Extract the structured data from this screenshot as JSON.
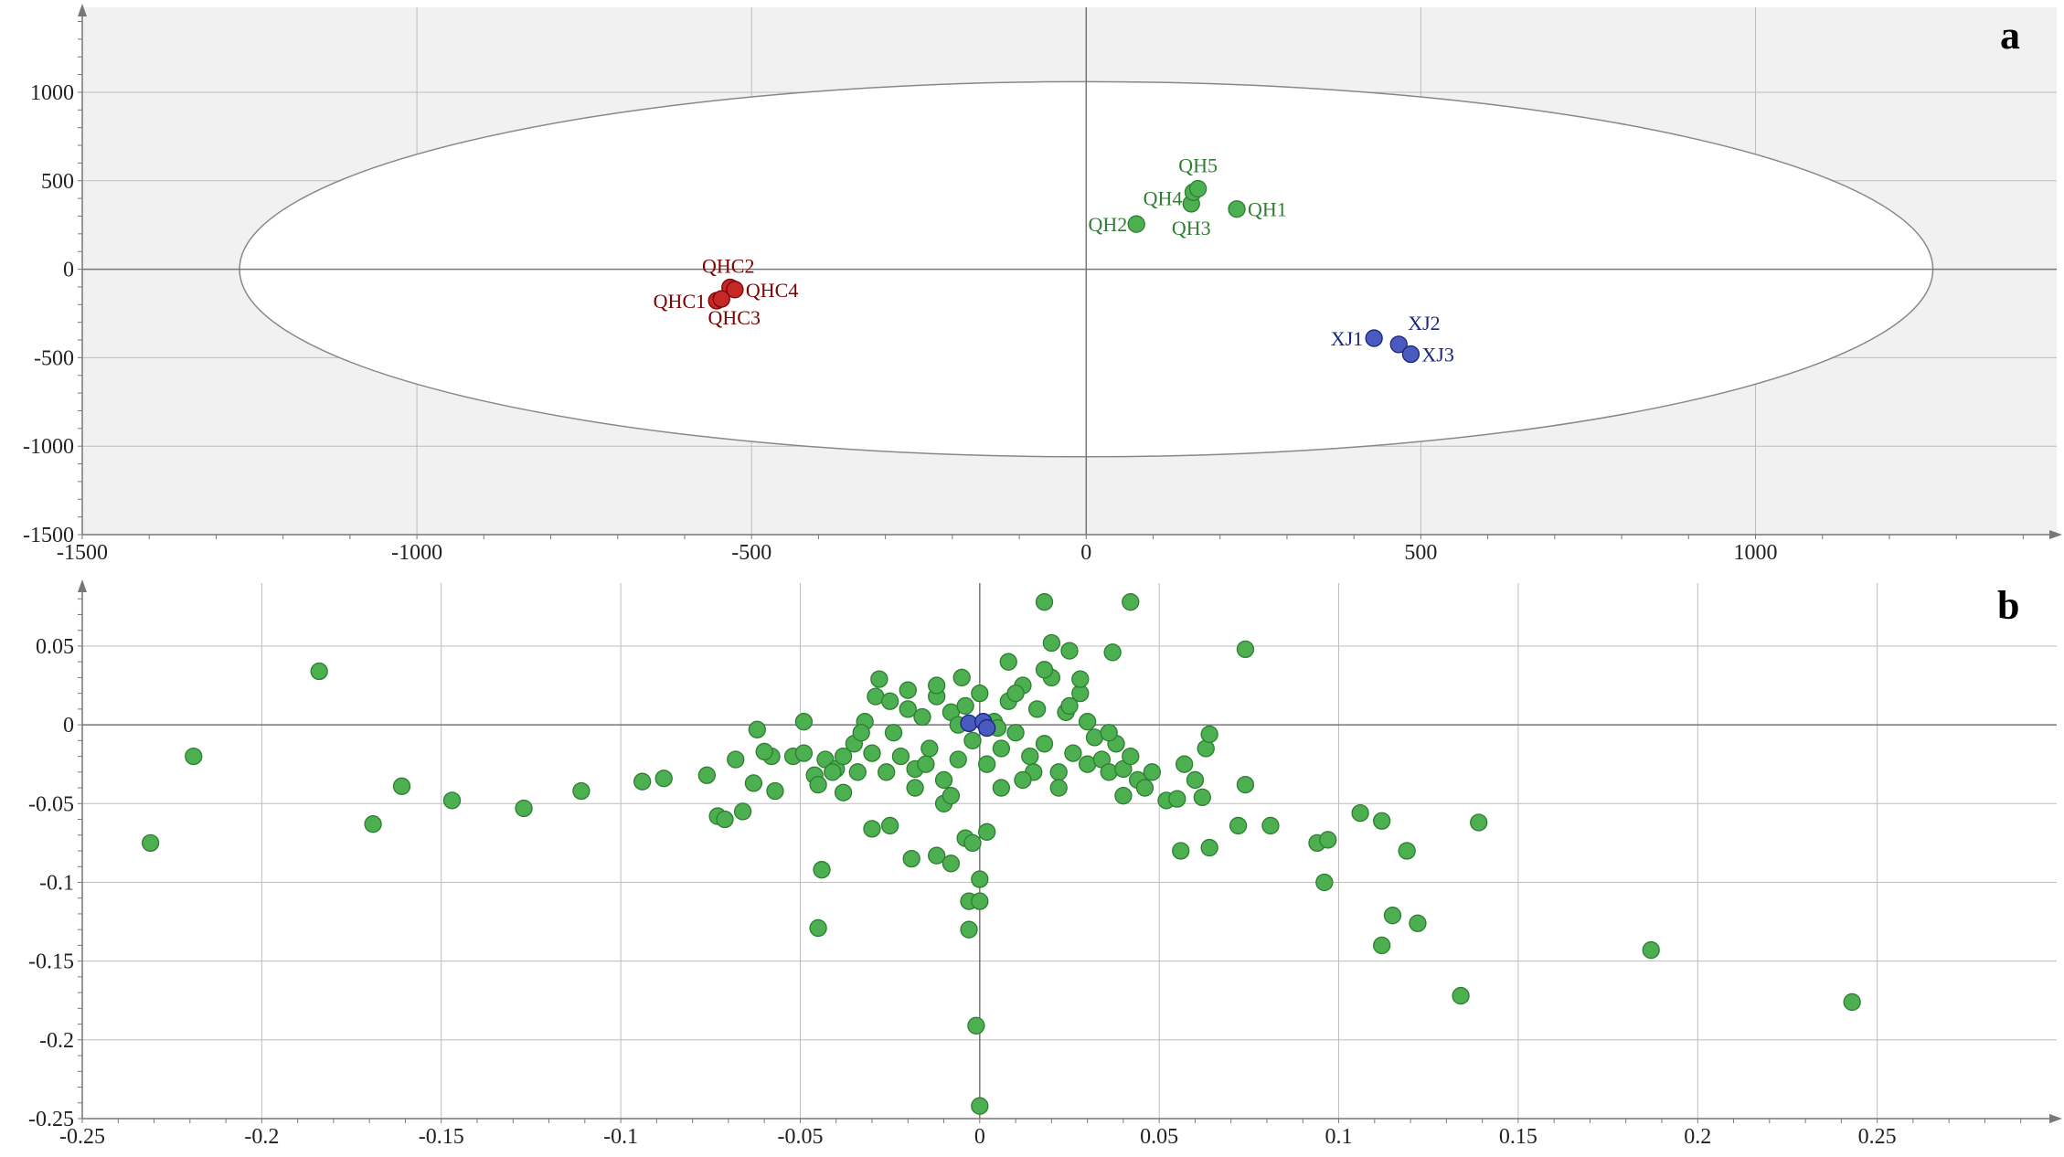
{
  "colors": {
    "green": "#4caf50",
    "green_stroke": "#2e7d32",
    "red": "#c62828",
    "red_stroke": "#7f0000",
    "blue": "#4a5bbf",
    "blue_stroke": "#1a237e",
    "plot_bg": "#f1f1f1",
    "ellipse_fill": "#ffffff",
    "grid": "#bdbdbd"
  },
  "chart_data": [
    {
      "type": "scatter",
      "panel_label": "a",
      "title": "",
      "xlabel": "",
      "ylabel": "",
      "xlim": [
        -1500,
        1450
      ],
      "ylim": [
        -1500,
        1480
      ],
      "x_ticks": [
        -1500,
        -1000,
        -500,
        0,
        500,
        1000
      ],
      "x_tick_labels": [
        "-1500",
        "-1000",
        "-500",
        "0",
        "500",
        "1000"
      ],
      "y_ticks": [
        -1500,
        -1000,
        -500,
        0,
        500,
        1000
      ],
      "y_tick_labels": [
        "-1500",
        "-1000",
        "-500",
        "0",
        "500",
        "1000"
      ],
      "grid": true,
      "ellipse": {
        "cx": 0,
        "cy": 0,
        "rx": 1265,
        "ry": 1060
      },
      "series": [
        {
          "color": "red",
          "points": [
            {
              "label": "QHC1",
              "x": -552,
              "y": -178
            },
            {
              "label": "QHC2",
              "x": -532,
              "y": -103
            },
            {
              "label": "QHC3",
              "x": -545,
              "y": -168
            },
            {
              "label": "QHC4",
              "x": -525,
              "y": -115
            }
          ]
        },
        {
          "color": "green",
          "points": [
            {
              "label": "QH1",
              "x": 225,
              "y": 340
            },
            {
              "label": "QH2",
              "x": 75,
              "y": 255
            },
            {
              "label": "QH3",
              "x": 157,
              "y": 370
            },
            {
              "label": "QH4",
              "x": 160,
              "y": 435
            },
            {
              "label": "QH5",
              "x": 167,
              "y": 455
            }
          ]
        },
        {
          "color": "blue",
          "points": [
            {
              "label": "XJ1",
              "x": 430,
              "y": -390
            },
            {
              "label": "XJ2",
              "x": 467,
              "y": -425
            },
            {
              "label": "XJ3",
              "x": 485,
              "y": -480
            }
          ]
        }
      ]
    },
    {
      "type": "scatter",
      "panel_label": "b",
      "title": "",
      "xlabel": "",
      "ylabel": "",
      "xlim": [
        -0.25,
        0.3
      ],
      "ylim": [
        -0.25,
        0.09
      ],
      "x_ticks": [
        -0.25,
        -0.2,
        -0.15,
        -0.1,
        -0.05,
        0,
        0.05,
        0.1,
        0.15,
        0.2,
        0.25
      ],
      "x_tick_labels": [
        "-0.25",
        "-0.2",
        "-0.15",
        "-0.1",
        "-0.05",
        "0",
        "0.05",
        "0.1",
        "0.15",
        "0.2",
        "0.25"
      ],
      "y_ticks": [
        -0.25,
        -0.2,
        -0.15,
        -0.1,
        -0.05,
        0,
        0.05
      ],
      "y_tick_labels": [
        "-0.25",
        "-0.2",
        "-0.15",
        "-0.1",
        "-0.05",
        "0",
        "0.05"
      ],
      "grid": true,
      "series": [
        {
          "color": "green",
          "points": [
            [
              -0.231,
              -0.075
            ],
            [
              -0.219,
              -0.02
            ],
            [
              -0.184,
              0.034
            ],
            [
              -0.169,
              -0.063
            ],
            [
              -0.161,
              -0.039
            ],
            [
              -0.147,
              -0.048
            ],
            [
              -0.127,
              -0.053
            ],
            [
              -0.111,
              -0.042
            ],
            [
              -0.094,
              -0.036
            ],
            [
              -0.088,
              -0.034
            ],
            [
              -0.076,
              -0.032
            ],
            [
              -0.073,
              -0.058
            ],
            [
              -0.071,
              -0.06
            ],
            [
              -0.068,
              -0.022
            ],
            [
              -0.066,
              -0.055
            ],
            [
              -0.063,
              -0.037
            ],
            [
              -0.062,
              -0.003
            ],
            [
              -0.058,
              -0.02
            ],
            [
              -0.06,
              -0.017
            ],
            [
              -0.057,
              -0.042
            ],
            [
              -0.052,
              -0.02
            ],
            [
              -0.049,
              -0.018
            ],
            [
              -0.046,
              -0.032
            ],
            [
              -0.049,
              0.002
            ],
            [
              -0.045,
              -0.038
            ],
            [
              -0.043,
              -0.022
            ],
            [
              -0.04,
              -0.028
            ],
            [
              -0.038,
              -0.043
            ],
            [
              -0.035,
              -0.012
            ],
            [
              -0.034,
              -0.03
            ],
            [
              -0.032,
              0.002
            ],
            [
              -0.03,
              -0.018
            ],
            [
              -0.029,
              0.018
            ],
            [
              -0.028,
              0.029
            ],
            [
              -0.026,
              -0.03
            ],
            [
              -0.024,
              -0.005
            ],
            [
              -0.022,
              -0.02
            ],
            [
              -0.02,
              0.01
            ],
            [
              -0.018,
              -0.028
            ],
            [
              -0.016,
              0.005
            ],
            [
              -0.014,
              -0.015
            ],
            [
              -0.012,
              0.018
            ],
            [
              -0.01,
              -0.035
            ],
            [
              -0.008,
              0.008
            ],
            [
              -0.006,
              -0.022
            ],
            [
              -0.004,
              0.012
            ],
            [
              -0.002,
              -0.01
            ],
            [
              0.0,
              0.02
            ],
            [
              0.002,
              -0.025
            ],
            [
              0.004,
              0.002
            ],
            [
              0.006,
              -0.015
            ],
            [
              0.008,
              0.015
            ],
            [
              0.01,
              -0.005
            ],
            [
              0.012,
              0.025
            ],
            [
              0.014,
              -0.02
            ],
            [
              0.016,
              0.01
            ],
            [
              0.018,
              -0.012
            ],
            [
              0.02,
              0.03
            ],
            [
              0.022,
              -0.03
            ],
            [
              0.024,
              0.008
            ],
            [
              0.026,
              -0.018
            ],
            [
              0.028,
              0.02
            ],
            [
              0.03,
              -0.025
            ],
            [
              0.032,
              -0.008
            ],
            [
              0.034,
              -0.022
            ],
            [
              0.036,
              -0.03
            ],
            [
              0.038,
              -0.012
            ],
            [
              0.04,
              -0.028
            ],
            [
              0.042,
              -0.02
            ],
            [
              0.044,
              -0.035
            ],
            [
              0.046,
              -0.04
            ],
            [
              0.048,
              -0.03
            ],
            [
              -0.03,
              -0.066
            ],
            [
              -0.025,
              -0.064
            ],
            [
              -0.019,
              -0.085
            ],
            [
              -0.012,
              -0.083
            ],
            [
              -0.01,
              -0.05
            ],
            [
              -0.008,
              -0.088
            ],
            [
              -0.004,
              -0.072
            ],
            [
              -0.003,
              -0.112
            ],
            [
              -0.002,
              -0.075
            ],
            [
              -0.003,
              -0.13
            ],
            [
              0.0,
              -0.112
            ],
            [
              0.0,
              -0.098
            ],
            [
              0.002,
              -0.068
            ],
            [
              -0.001,
              -0.191
            ],
            [
              0.0,
              -0.242
            ],
            [
              -0.044,
              -0.092
            ],
            [
              -0.045,
              -0.129
            ],
            [
              0.018,
              0.078
            ],
            [
              0.042,
              0.078
            ],
            [
              0.037,
              0.046
            ],
            [
              0.025,
              0.047
            ],
            [
              0.02,
              0.052
            ],
            [
              0.074,
              0.048
            ],
            [
              0.028,
              0.029
            ],
            [
              0.052,
              -0.048
            ],
            [
              0.055,
              -0.047
            ],
            [
              0.056,
              -0.08
            ],
            [
              0.057,
              -0.025
            ],
            [
              0.06,
              -0.035
            ],
            [
              0.062,
              -0.046
            ],
            [
              0.064,
              -0.078
            ],
            [
              0.063,
              -0.015
            ],
            [
              0.064,
              -0.006
            ],
            [
              0.072,
              -0.064
            ],
            [
              0.074,
              -0.038
            ],
            [
              0.081,
              -0.064
            ],
            [
              0.094,
              -0.075
            ],
            [
              0.096,
              -0.1
            ],
            [
              0.097,
              -0.073
            ],
            [
              0.106,
              -0.056
            ],
            [
              0.112,
              -0.061
            ],
            [
              0.112,
              -0.14
            ],
            [
              0.115,
              -0.121
            ],
            [
              0.119,
              -0.08
            ],
            [
              0.122,
              -0.126
            ],
            [
              0.134,
              -0.172
            ],
            [
              0.139,
              -0.062
            ],
            [
              0.187,
              -0.143
            ],
            [
              0.243,
              -0.176
            ],
            [
              -0.006,
              0.0
            ],
            [
              0.005,
              -0.002
            ],
            [
              -0.015,
              -0.025
            ],
            [
              0.01,
              0.02
            ],
            [
              -0.02,
              0.022
            ],
            [
              0.015,
              -0.03
            ],
            [
              0.025,
              0.012
            ],
            [
              -0.033,
              -0.005
            ],
            [
              0.03,
              0.002
            ],
            [
              -0.038,
              -0.02
            ],
            [
              0.036,
              -0.005
            ],
            [
              -0.041,
              -0.03
            ],
            [
              0.04,
              -0.045
            ],
            [
              -0.018,
              -0.04
            ],
            [
              0.018,
              0.035
            ],
            [
              -0.008,
              -0.045
            ],
            [
              0.008,
              0.04
            ],
            [
              0.006,
              -0.04
            ],
            [
              -0.005,
              0.03
            ],
            [
              -0.025,
              0.015
            ],
            [
              0.022,
              -0.04
            ],
            [
              0.012,
              -0.035
            ],
            [
              -0.012,
              0.025
            ]
          ]
        },
        {
          "color": "blue",
          "points": [
            [
              -0.003,
              0.001
            ],
            [
              0.001,
              0.002
            ],
            [
              0.002,
              -0.002
            ]
          ]
        }
      ]
    }
  ]
}
